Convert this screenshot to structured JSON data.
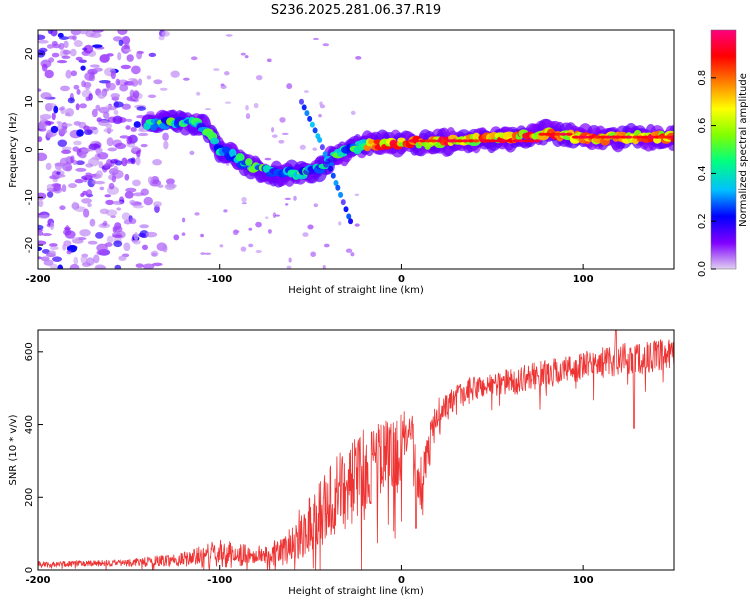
{
  "title": "S236.2025.281.06.37.R19",
  "chart_data": [
    {
      "type": "heatmap",
      "xlabel": "Height of straight line (km)",
      "ylabel": "Frequency (Hz)",
      "xlim": [
        -200,
        150
      ],
      "ylim": [
        -25,
        25
      ],
      "xticks": [
        -200,
        -100,
        0,
        100
      ],
      "yticks": [
        -20,
        -10,
        0,
        10,
        20
      ],
      "colorbar": {
        "label": "Normalized spectral amplitude",
        "range": [
          0,
          1
        ],
        "ticks": [
          0.0,
          0.2,
          0.4,
          0.6,
          0.8
        ],
        "colormap": [
          "#e0d0f0",
          "#8000ff",
          "#0000ff",
          "#00c0ff",
          "#00ff80",
          "#80ff00",
          "#ffff00",
          "#ff8000",
          "#ff0000",
          "#ff0080"
        ]
      },
      "features": [
        {
          "name": "diffuse noise",
          "x_range": [
            -200,
            -120
          ],
          "freq_range": [
            -25,
            25
          ],
          "amplitude": 0.15
        },
        {
          "name": "main ridge",
          "points": [
            [
              -140,
              5
            ],
            [
              -120,
              6
            ],
            [
              -110,
              5
            ],
            [
              -100,
              0
            ],
            [
              -90,
              -2
            ],
            [
              -80,
              -4
            ],
            [
              -70,
              -5
            ],
            [
              -55,
              -5
            ],
            [
              -45,
              -4
            ],
            [
              -35,
              -1
            ],
            [
              -20,
              1
            ],
            [
              0,
              1.5
            ],
            [
              20,
              1.5
            ],
            [
              40,
              2
            ],
            [
              60,
              2.5
            ],
            [
              80,
              3.5
            ],
            [
              100,
              2.5
            ],
            [
              150,
              2.5
            ]
          ],
          "amplitude": 0.85
        },
        {
          "name": "descending streak",
          "points": [
            [
              -55,
              10
            ],
            [
              -45,
              2
            ],
            [
              -35,
              -8
            ],
            [
              -28,
              -15
            ]
          ],
          "amplitude": 0.3
        }
      ]
    },
    {
      "type": "line",
      "xlabel": "Height of straight line (km)",
      "ylabel": "SNR (10 * v/v)",
      "xlim": [
        -200,
        150
      ],
      "ylim": [
        0,
        660
      ],
      "xticks": [
        -200,
        -100,
        0,
        100
      ],
      "yticks": [
        0,
        200,
        400,
        600
      ],
      "color": "#ee3333",
      "series_profile": [
        {
          "x": -200,
          "mean": 15,
          "noise": 8
        },
        {
          "x": -150,
          "mean": 20,
          "noise": 10
        },
        {
          "x": -120,
          "mean": 30,
          "noise": 20
        },
        {
          "x": -100,
          "mean": 45,
          "noise": 40
        },
        {
          "x": -80,
          "mean": 40,
          "noise": 25
        },
        {
          "x": -65,
          "mean": 50,
          "noise": 40
        },
        {
          "x": -50,
          "mean": 130,
          "noise": 90
        },
        {
          "x": -30,
          "mean": 230,
          "noise": 120
        },
        {
          "x": -15,
          "mean": 300,
          "noise": 110
        },
        {
          "x": 0,
          "mean": 320,
          "noise": 110
        },
        {
          "x": 5,
          "mean": 420,
          "noise": 60
        },
        {
          "x": 10,
          "mean": 220,
          "noise": 80
        },
        {
          "x": 20,
          "mean": 440,
          "noise": 40
        },
        {
          "x": 40,
          "mean": 500,
          "noise": 35
        },
        {
          "x": 60,
          "mean": 520,
          "noise": 35
        },
        {
          "x": 80,
          "mean": 540,
          "noise": 40
        },
        {
          "x": 100,
          "mean": 560,
          "noise": 40
        },
        {
          "x": 120,
          "mean": 580,
          "noise": 45
        },
        {
          "x": 150,
          "mean": 590,
          "noise": 45
        }
      ],
      "features": [
        {
          "name": "dip",
          "x": 8,
          "min": 115
        },
        {
          "name": "dip",
          "x": 128,
          "min": 390
        },
        {
          "name": "peak",
          "x": 118,
          "max": 660
        }
      ]
    }
  ]
}
